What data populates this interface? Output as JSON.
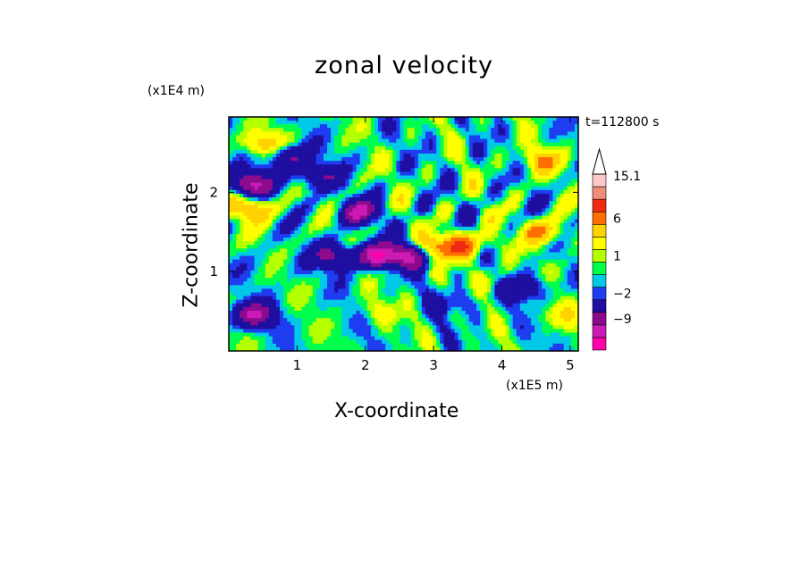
{
  "chart_data": {
    "type": "heatmap",
    "title": "zonal velocity",
    "xlabel": "X-coordinate",
    "ylabel": "Z-coordinate",
    "x_unit": "(x1E5 m)",
    "y_unit": "(x1E4 m)",
    "time_label": "t=112800 s",
    "xlim": [
      0,
      5.12
    ],
    "ylim": [
      0,
      2.95
    ],
    "x_ticks": [
      1,
      2,
      3,
      4,
      5
    ],
    "x_tick_labels": [
      "1",
      "2",
      "3",
      "4",
      "5"
    ],
    "y_ticks": [
      1,
      2
    ],
    "y_tick_labels": [
      "1",
      "2"
    ],
    "colorbar": {
      "levels": [
        -15,
        -12,
        -9,
        -6,
        -2,
        -1,
        0,
        1,
        2,
        4,
        6,
        9,
        12,
        15.1
      ],
      "colors": [
        "#ff00aa",
        "#cc1ab4",
        "#8c0a8c",
        "#1e0fa0",
        "#1e3cf0",
        "#00c8e6",
        "#00ff4c",
        "#b4ff00",
        "#ffff00",
        "#ffd200",
        "#ff6e00",
        "#ee2a10",
        "#f08c78",
        "#ffc8c8"
      ],
      "labels": [
        "15.1",
        "6",
        "1",
        "−2",
        "−9"
      ],
      "label_values": [
        15.1,
        6,
        1,
        -2,
        -9
      ],
      "extend": "max"
    },
    "features": [
      {
        "x": 0.3,
        "z": 2.1,
        "value": -10
      },
      {
        "x": 0.85,
        "z": 2.45,
        "value": -7
      },
      {
        "x": 1.3,
        "z": 2.2,
        "value": -6
      },
      {
        "x": 0.35,
        "z": 0.45,
        "value": -9
      },
      {
        "x": 2.2,
        "z": 1.2,
        "value": -11
      },
      {
        "x": 1.9,
        "z": 1.75,
        "value": -8
      },
      {
        "x": 1.55,
        "z": 1.2,
        "value": -7
      },
      {
        "x": 2.7,
        "z": 1.2,
        "value": -8
      },
      {
        "x": 0.3,
        "z": 1.8,
        "value": 7
      },
      {
        "x": 0.5,
        "z": 2.6,
        "value": 6
      },
      {
        "x": 3.1,
        "z": 1.3,
        "value": 8
      },
      {
        "x": 3.5,
        "z": 1.35,
        "value": 6
      },
      {
        "x": 4.6,
        "z": 1.5,
        "value": 6
      },
      {
        "x": 4.6,
        "z": 2.4,
        "value": 5
      },
      {
        "x": 0.8,
        "z": 1.1,
        "value": -1
      },
      {
        "x": 3.9,
        "z": 0.9,
        "value": 2
      },
      {
        "x": 4.3,
        "z": 0.8,
        "value": -6
      },
      {
        "x": 3.3,
        "z": 0.6,
        "value": -3
      },
      {
        "x": 2.2,
        "z": 0.5,
        "value": 2
      },
      {
        "x": 4.9,
        "z": 0.45,
        "value": 3
      }
    ]
  }
}
